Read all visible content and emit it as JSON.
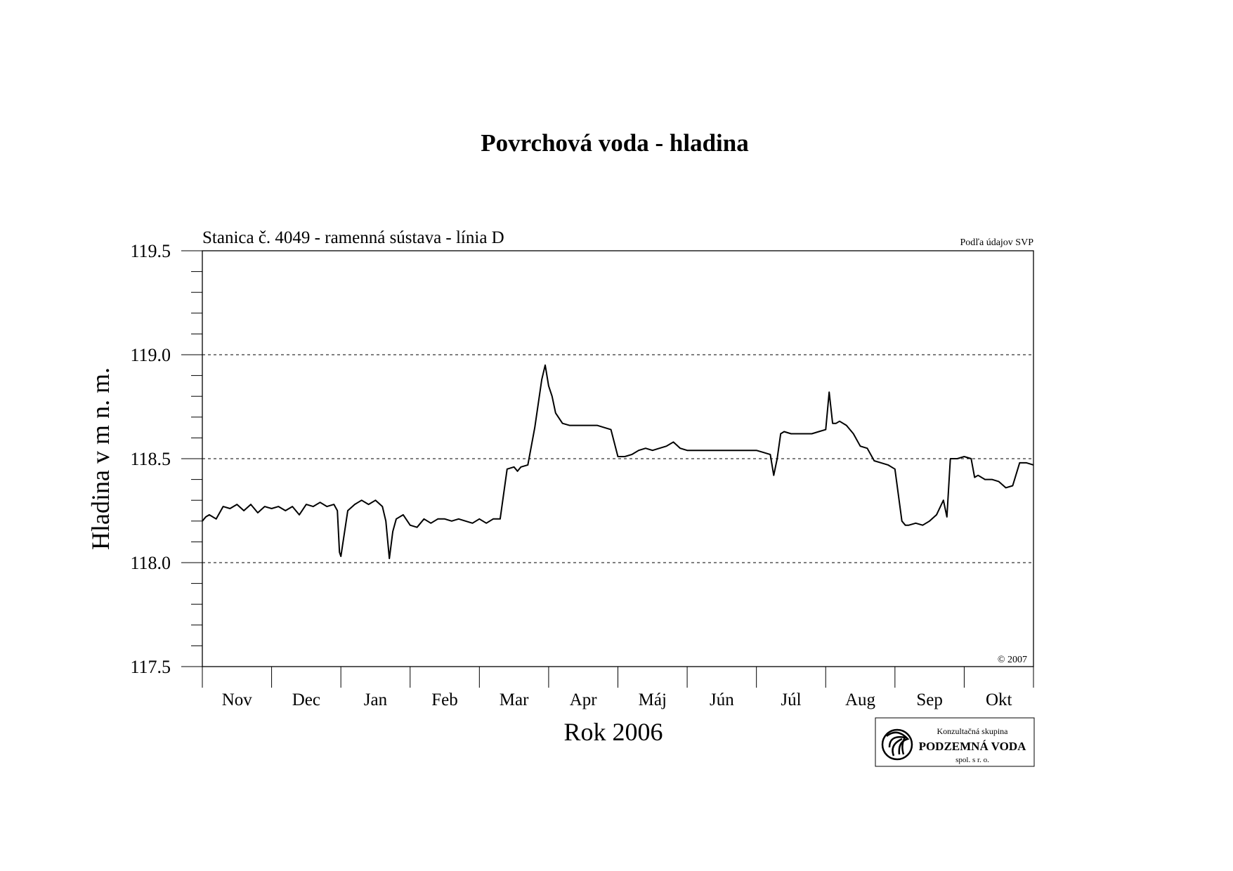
{
  "chart_data": {
    "type": "line",
    "title": "Povrchová voda - hladina",
    "subtitle": "Stanica č. 4049 - ramenná sústava - línia D",
    "source_note": "Podľa údajov SVP",
    "copyright": "© 2007",
    "xlabel": "Rok 2006",
    "ylabel": "Hladina v m n. m.",
    "x_unit_note": "x values are months since start of November 2005 (0 = 1 Nov 2005, 12 = 1 Nov 2006)",
    "xlim": [
      0,
      12
    ],
    "ylim": [
      117.5,
      119.5
    ],
    "yticks": [
      "117.5",
      "118.0",
      "118.5",
      "119.0",
      "119.5"
    ],
    "ytick_values": [
      117.5,
      118.0,
      118.5,
      119.0,
      119.5
    ],
    "y_minor_step": 0.1,
    "grid": "dashed horizontal at major ticks",
    "months": [
      "Nov",
      "Dec",
      "Jan",
      "Feb",
      "Mar",
      "Apr",
      "Máj",
      "Jún",
      "Júl",
      "Aug",
      "Sep",
      "Okt"
    ],
    "series": [
      {
        "color": "#000000",
        "x": [
          0.0,
          0.05,
          0.1,
          0.2,
          0.3,
          0.4,
          0.5,
          0.6,
          0.7,
          0.8,
          0.9,
          1.0,
          1.1,
          1.2,
          1.3,
          1.4,
          1.5,
          1.6,
          1.7,
          1.8,
          1.9,
          1.95,
          1.98,
          2.0,
          2.1,
          2.2,
          2.3,
          2.4,
          2.5,
          2.6,
          2.65,
          2.7,
          2.75,
          2.8,
          2.9,
          3.0,
          3.1,
          3.2,
          3.3,
          3.4,
          3.5,
          3.6,
          3.7,
          3.8,
          3.9,
          4.0,
          4.1,
          4.2,
          4.3,
          4.4,
          4.5,
          4.55,
          4.6,
          4.7,
          4.8,
          4.9,
          4.95,
          5.0,
          5.05,
          5.1,
          5.2,
          5.3,
          5.4,
          5.5,
          5.6,
          5.7,
          5.9,
          6.0,
          6.1,
          6.2,
          6.3,
          6.4,
          6.5,
          6.6,
          6.7,
          6.8,
          6.9,
          7.0,
          7.1,
          7.2,
          7.3,
          7.4,
          7.5,
          7.6,
          7.7,
          7.8,
          7.9,
          8.0,
          8.1,
          8.2,
          8.25,
          8.3,
          8.35,
          8.4,
          8.5,
          8.6,
          8.7,
          8.8,
          8.9,
          9.0,
          9.05,
          9.1,
          9.15,
          9.2,
          9.3,
          9.4,
          9.5,
          9.6,
          9.7,
          9.8,
          9.9,
          10.0,
          10.1,
          10.15,
          10.2,
          10.3,
          10.4,
          10.5,
          10.6,
          10.7,
          10.75,
          10.8,
          10.9,
          11.0,
          11.1,
          11.15,
          11.2,
          11.3,
          11.4,
          11.5,
          11.6,
          11.7,
          11.8,
          11.9,
          12.0
        ],
        "y": [
          118.2,
          118.22,
          118.23,
          118.21,
          118.27,
          118.26,
          118.28,
          118.25,
          118.28,
          118.24,
          118.27,
          118.26,
          118.27,
          118.25,
          118.27,
          118.23,
          118.28,
          118.27,
          118.29,
          118.27,
          118.28,
          118.25,
          118.05,
          118.03,
          118.25,
          118.28,
          118.3,
          118.28,
          118.3,
          118.27,
          118.2,
          118.02,
          118.15,
          118.21,
          118.23,
          118.18,
          118.17,
          118.21,
          118.19,
          118.21,
          118.21,
          118.2,
          118.21,
          118.2,
          118.19,
          118.21,
          118.19,
          118.21,
          118.21,
          118.45,
          118.46,
          118.44,
          118.46,
          118.47,
          118.65,
          118.88,
          118.95,
          118.85,
          118.8,
          118.72,
          118.67,
          118.66,
          118.66,
          118.66,
          118.66,
          118.66,
          118.64,
          118.51,
          118.51,
          118.52,
          118.54,
          118.55,
          118.54,
          118.55,
          118.56,
          118.58,
          118.55,
          118.54,
          118.54,
          118.54,
          118.54,
          118.54,
          118.54,
          118.54,
          118.54,
          118.54,
          118.54,
          118.54,
          118.53,
          118.52,
          118.42,
          118.5,
          118.62,
          118.63,
          118.62,
          118.62,
          118.62,
          118.62,
          118.63,
          118.64,
          118.82,
          118.67,
          118.67,
          118.68,
          118.66,
          118.62,
          118.56,
          118.55,
          118.49,
          118.48,
          118.47,
          118.45,
          118.2,
          118.18,
          118.18,
          118.19,
          118.18,
          118.2,
          118.23,
          118.3,
          118.22,
          118.5,
          118.5,
          118.51,
          118.5,
          118.41,
          118.42,
          118.4,
          118.4,
          118.39,
          118.36,
          118.37,
          118.48,
          118.48,
          118.47
        ]
      }
    ]
  },
  "logo": {
    "line1": "Konzultačná skupina",
    "line2": "PODZEMNÁ VODA",
    "line3": "spol. s r. o."
  }
}
